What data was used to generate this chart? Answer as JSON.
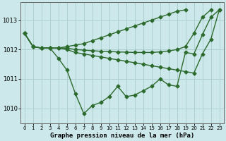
{
  "title": "Graphe pression niveau de la mer (hPa)",
  "bg_color": "#cce8ea",
  "grid_color": "#aacccc",
  "line_color": "#2d6a2d",
  "marker": "D",
  "markersize": 2.5,
  "linewidth": 1.0,
  "x": [
    0,
    1,
    2,
    3,
    4,
    5,
    6,
    7,
    8,
    9,
    10,
    11,
    12,
    13,
    14,
    15,
    16,
    17,
    18,
    19,
    20,
    21,
    22,
    23
  ],
  "series": [
    [
      1012.55,
      1012.1,
      1012.05,
      1012.05,
      1011.7,
      1011.3,
      1010.5,
      1009.82,
      1010.1,
      1010.2,
      1010.4,
      1010.75,
      1010.4,
      1010.45,
      1010.6,
      1010.75,
      1011.0,
      1010.8,
      1010.75,
      1011.9,
      1011.85,
      1012.5,
      1013.1,
      1013.35
    ],
    [
      1012.55,
      1012.1,
      1012.05,
      1012.05,
      1012.05,
      1012.0,
      1011.9,
      1011.85,
      1011.8,
      1011.75,
      1011.7,
      1011.65,
      1011.6,
      1011.55,
      1011.5,
      1011.45,
      1011.4,
      1011.35,
      1011.3,
      1011.25,
      1011.2,
      1011.85,
      1012.35,
      1013.35
    ],
    [
      1012.55,
      1012.1,
      1012.05,
      1012.05,
      1012.05,
      1012.05,
      1012.0,
      1011.98,
      1011.96,
      1011.94,
      1011.93,
      1011.92,
      1011.91,
      1011.9,
      1011.9,
      1011.9,
      1011.92,
      1011.95,
      1012.0,
      1012.1,
      1012.55,
      1013.1,
      1013.35,
      null
    ],
    [
      1012.55,
      1012.1,
      1012.05,
      1012.05,
      1012.05,
      1012.1,
      1012.15,
      1012.2,
      1012.3,
      1012.4,
      1012.5,
      1012.6,
      1012.7,
      1012.8,
      1012.9,
      1013.0,
      1013.1,
      1013.2,
      1013.3,
      1013.35,
      null,
      null,
      null,
      null
    ]
  ],
  "ylim": [
    1009.5,
    1013.6
  ],
  "yticks": [
    1010,
    1011,
    1012,
    1013
  ],
  "xticks": [
    0,
    1,
    2,
    3,
    4,
    5,
    6,
    7,
    8,
    9,
    10,
    11,
    12,
    13,
    14,
    15,
    16,
    17,
    18,
    19,
    20,
    21,
    22,
    23
  ]
}
